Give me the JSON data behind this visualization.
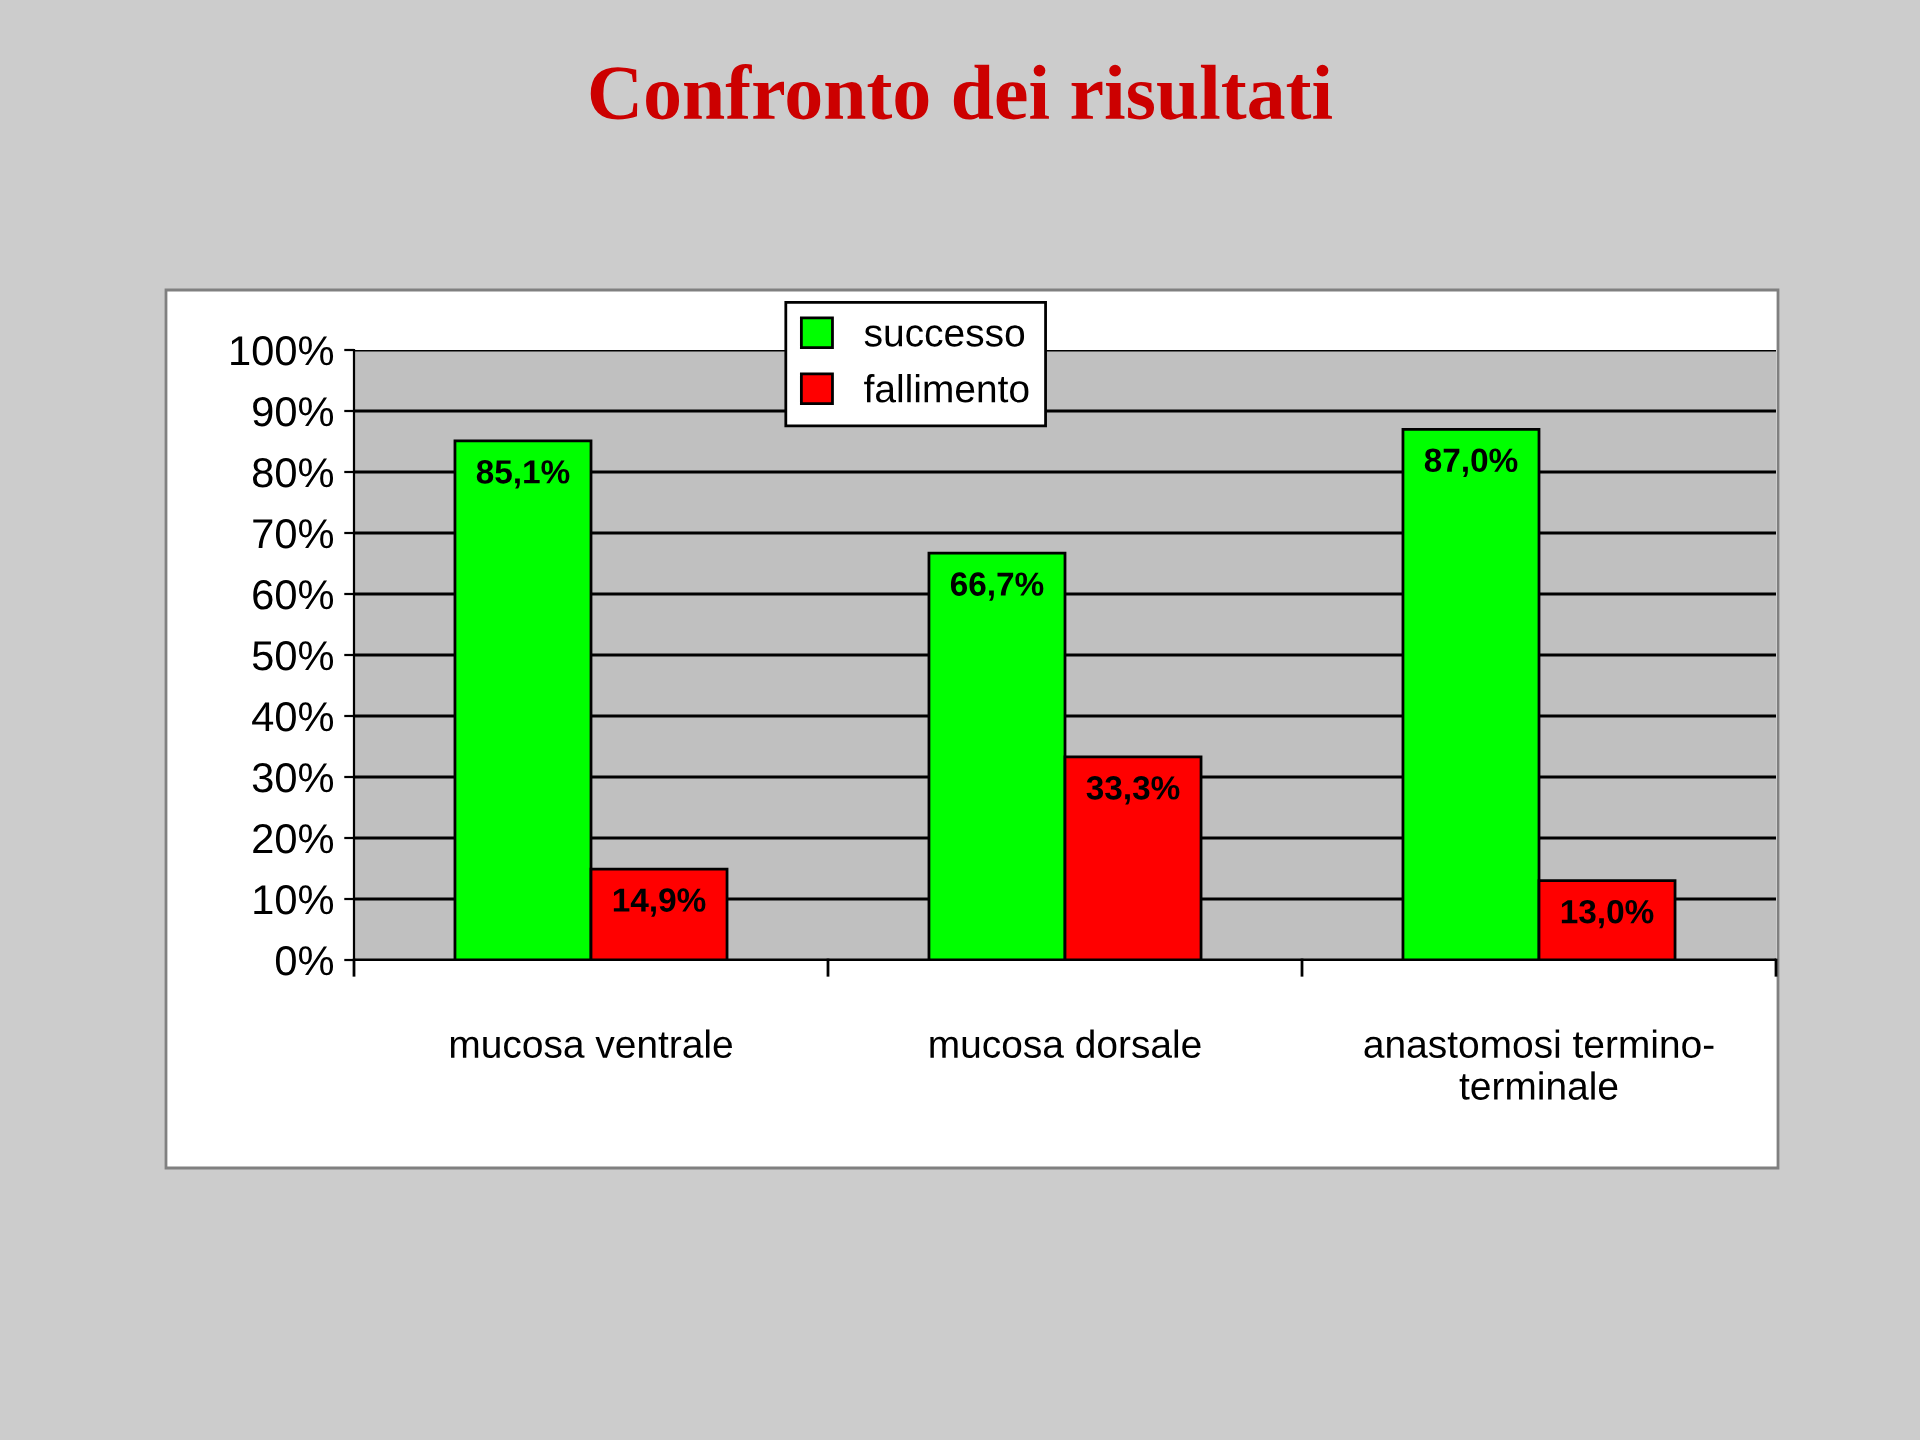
{
  "chart_data": {
    "type": "bar",
    "title": "Confronto dei risultati",
    "categories": [
      "mucosa ventrale",
      "mucosa dorsale",
      "anastomosi termino-terminale"
    ],
    "series": [
      {
        "name": "successo",
        "color": "#00ff00",
        "values": [
          85.1,
          66.7,
          87.0
        ],
        "value_labels": [
          "85,1%",
          "66,7%",
          "87,0%"
        ]
      },
      {
        "name": "fallimento",
        "color": "#ff0000",
        "values": [
          14.9,
          33.3,
          13.0
        ],
        "value_labels": [
          "14,9%",
          "33,3%",
          "13,0%"
        ]
      }
    ],
    "ylim": [
      0,
      100
    ],
    "yticks": [
      {
        "value": 0,
        "label": "0%"
      },
      {
        "value": 10,
        "label": "10%"
      },
      {
        "value": 20,
        "label": "20%"
      },
      {
        "value": 30,
        "label": "30%"
      },
      {
        "value": 40,
        "label": "40%"
      },
      {
        "value": 50,
        "label": "50%"
      },
      {
        "value": 60,
        "label": "60%"
      },
      {
        "value": 70,
        "label": "70%"
      },
      {
        "value": 80,
        "label": "80%"
      },
      {
        "value": 90,
        "label": "90%"
      },
      {
        "value": 100,
        "label": "100%"
      }
    ],
    "grid": "y",
    "legend": "top"
  }
}
